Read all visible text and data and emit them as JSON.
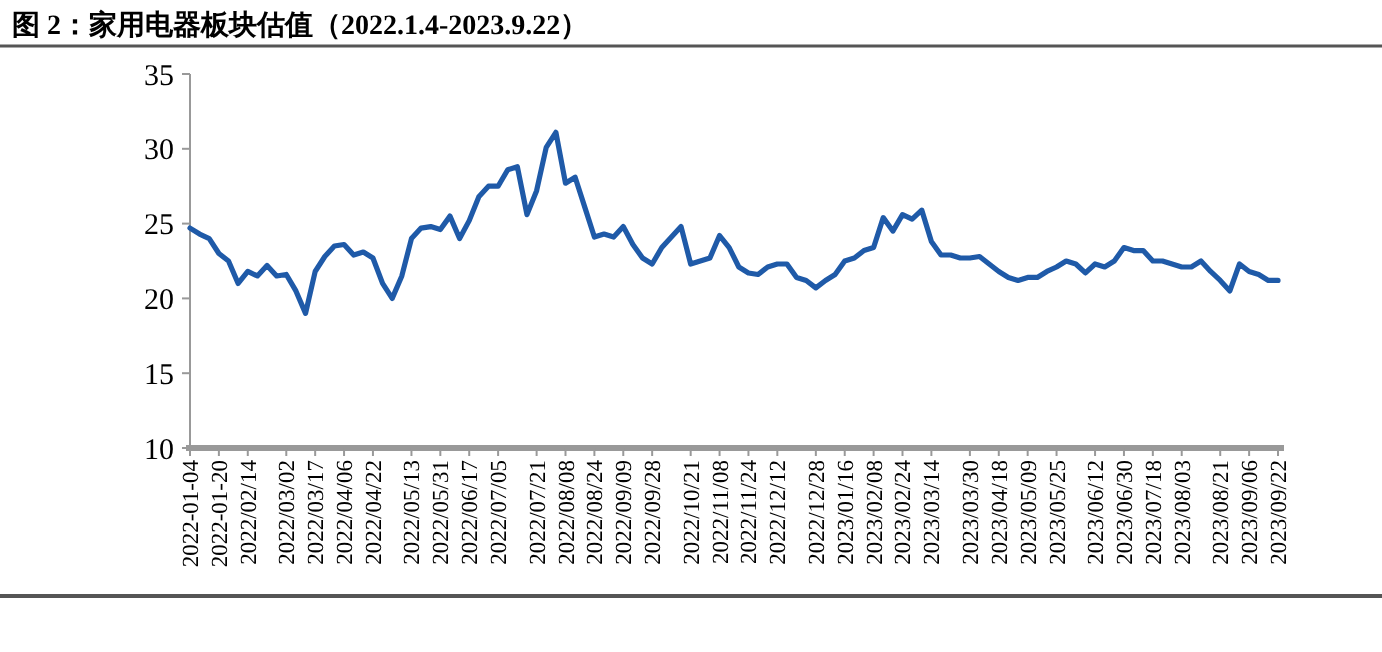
{
  "chart_data": {
    "type": "line",
    "title": "图 2：家用电器板块估值（2022.1.4-2023.9.22）",
    "categories": [
      "2022-01-04",
      null,
      null,
      "2022-01-20",
      null,
      null,
      "2022/02/14",
      null,
      null,
      null,
      "2022/03/02",
      null,
      null,
      "2022/03/17",
      null,
      null,
      "2022/04/06",
      null,
      null,
      "2022/04/22",
      null,
      null,
      null,
      "2022/05/13",
      null,
      null,
      "2022/05/31",
      null,
      null,
      "2022/06/17",
      null,
      null,
      "2022/07/05",
      null,
      null,
      null,
      "2022/07/21",
      null,
      null,
      "2022/08/08",
      null,
      null,
      "2022/08/24",
      null,
      null,
      "2022/09/09",
      null,
      null,
      "2022/09/28",
      null,
      null,
      null,
      "2022/10/21",
      null,
      null,
      "2022/11/08",
      null,
      null,
      "2022/11/24",
      null,
      null,
      "2022/12/12",
      null,
      null,
      null,
      "2022/12/28",
      null,
      null,
      "2023/01/16",
      null,
      null,
      "2023/02/08",
      null,
      null,
      "2023/02/24",
      null,
      null,
      "2023/03/14",
      null,
      null,
      null,
      "2023/03/30",
      null,
      null,
      "2023/04/18",
      null,
      null,
      "2023/05/09",
      null,
      null,
      "2023/05/25",
      null,
      null,
      null,
      "2023/06/12",
      null,
      null,
      "2023/06/30",
      null,
      null,
      "2023/07/18",
      null,
      null,
      "2023/08/03",
      null,
      null,
      null,
      "2023/08/21",
      null,
      null,
      "2023/09/06",
      null,
      null,
      "2023/09/22"
    ],
    "series": [
      {
        "color": "#1f5aa8",
        "values": [
          24.7,
          24.3,
          24.0,
          23.0,
          22.5,
          21.0,
          21.8,
          21.5,
          22.2,
          21.5,
          21.6,
          20.5,
          19.0,
          21.8,
          22.8,
          23.5,
          23.6,
          22.9,
          23.1,
          22.7,
          21.0,
          20.0,
          21.5,
          24.0,
          24.7,
          24.8,
          24.6,
          25.5,
          24.0,
          25.2,
          26.8,
          27.5,
          27.5,
          28.6,
          28.8,
          25.6,
          27.2,
          30.1,
          31.1,
          27.7,
          28.1,
          26.1,
          24.1,
          24.3,
          24.1,
          24.8,
          23.6,
          22.7,
          22.3,
          23.4,
          24.1,
          24.8,
          22.3,
          22.5,
          22.7,
          24.2,
          23.4,
          22.1,
          21.7,
          21.6,
          22.1,
          22.3,
          22.3,
          21.4,
          21.2,
          20.7,
          21.2,
          21.6,
          22.5,
          22.7,
          23.2,
          23.4,
          25.4,
          24.5,
          25.6,
          25.3,
          25.9,
          23.8,
          22.9,
          22.9,
          22.7,
          22.7,
          22.8,
          22.3,
          21.8,
          21.4,
          21.2,
          21.4,
          21.4,
          21.8,
          22.1,
          22.5,
          22.3,
          21.7,
          22.3,
          22.1,
          22.5,
          23.4,
          23.2,
          23.2,
          22.5,
          22.5,
          22.3,
          22.1,
          22.1,
          22.5,
          21.8,
          21.2,
          20.5,
          22.3,
          21.8,
          21.6,
          21.2,
          21.2
        ]
      }
    ],
    "ylim": [
      10,
      35
    ],
    "yticks": [
      10,
      15,
      20,
      25,
      30,
      35
    ],
    "grid": false,
    "line_style": "solid"
  }
}
